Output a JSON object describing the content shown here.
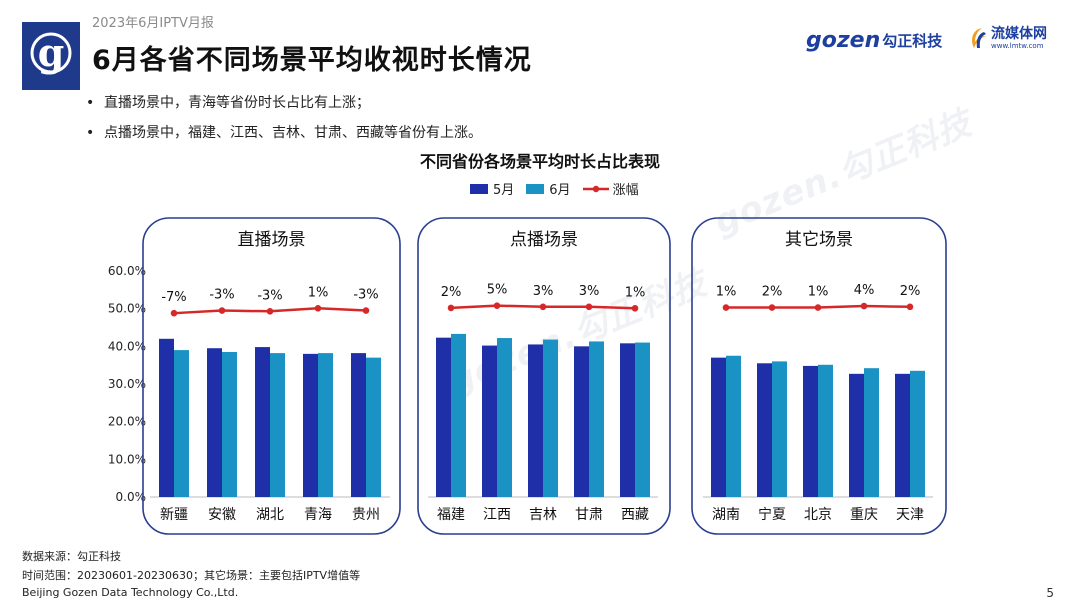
{
  "header": {
    "report_label": "2023年6月IPTV月报",
    "title": "6月各省不同场景平均收视时长情况",
    "brand_gozen_word": "gozen",
    "brand_gozen_cn": "勾正科技",
    "brand_lmtw_cn": "流媒体网",
    "brand_lmtw_url": "www.lmtw.com",
    "watermark": "gozen.勾正科技"
  },
  "bullets": [
    "直播场景中，青海等省份时长占比有上涨；",
    "点播场景中，福建、江西、吉林、甘肃、西藏等省份有上涨。"
  ],
  "chart_data": {
    "type": "bar",
    "title": "不同省份各场景平均时长占比表现",
    "legend": [
      "5月",
      "6月",
      "涨幅"
    ],
    "colors": {
      "may": "#1f2fa8",
      "june": "#1a93c4",
      "change": "#d62828"
    },
    "yaxis_ticks": [
      "0.0%",
      "10.0%",
      "20.0%",
      "30.0%",
      "40.0%",
      "50.0%",
      "60.0%"
    ],
    "ylim": [
      0,
      60
    ],
    "panels": [
      {
        "title": "直播场景",
        "categories": [
          "新疆",
          "安徽",
          "湖北",
          "青海",
          "贵州"
        ],
        "series": [
          {
            "name": "5月",
            "values": [
              42.0,
              39.5,
              39.8,
              38.0,
              38.2
            ]
          },
          {
            "name": "6月",
            "values": [
              39.0,
              38.5,
              38.2,
              38.2,
              37.0
            ]
          }
        ],
        "change_labels": [
          "-7%",
          "-3%",
          "-3%",
          "1%",
          "-3%"
        ],
        "change_line_level": [
          48.8,
          49.5,
          49.3,
          50.1,
          49.5
        ]
      },
      {
        "title": "点播场景",
        "categories": [
          "福建",
          "江西",
          "吉林",
          "甘肃",
          "西藏"
        ],
        "series": [
          {
            "name": "5月",
            "values": [
              42.3,
              40.2,
              40.5,
              40.0,
              40.8
            ]
          },
          {
            "name": "6月",
            "values": [
              43.3,
              42.2,
              41.8,
              41.3,
              41.0
            ]
          }
        ],
        "change_labels": [
          "2%",
          "5%",
          "3%",
          "3%",
          "1%"
        ],
        "change_line_level": [
          50.2,
          50.8,
          50.5,
          50.5,
          50.1
        ]
      },
      {
        "title": "其它场景",
        "categories": [
          "湖南",
          "宁夏",
          "北京",
          "重庆",
          "天津"
        ],
        "series": [
          {
            "name": "5月",
            "values": [
              37.0,
              35.5,
              34.8,
              32.7,
              32.7
            ]
          },
          {
            "name": "6月",
            "values": [
              37.5,
              36.0,
              35.1,
              34.2,
              33.5
            ]
          }
        ],
        "change_labels": [
          "1%",
          "2%",
          "1%",
          "4%",
          "2%"
        ],
        "change_line_level": [
          50.3,
          50.3,
          50.3,
          50.7,
          50.5
        ]
      }
    ]
  },
  "footer": {
    "source": "数据来源：勾正科技",
    "timerange": "时间范围：20230601-20230630；其它场景：主要包括IPTV增值等",
    "company": "Beijing Gozen Data Technology Co.,Ltd.",
    "page": "5"
  }
}
